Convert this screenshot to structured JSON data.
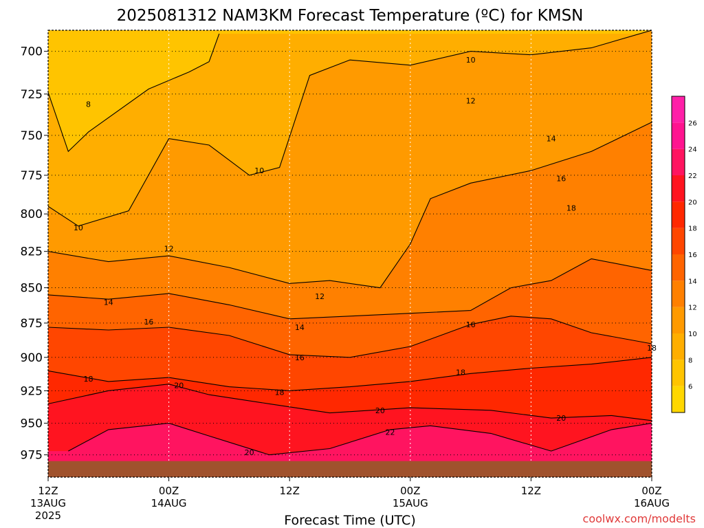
{
  "chart_data": {
    "type": "heatmap",
    "title": "2025081312 NAM3KM Forecast Temperature (ºC) for KMSN",
    "xlabel": "Forecast Time (UTC)",
    "ylabel": "",
    "credit": "coolwx.com/modelts",
    "x_ticks": [
      {
        "hours": 0,
        "line1": "12Z",
        "line2": "13AUG",
        "line3": "2025"
      },
      {
        "hours": 12,
        "line1": "00Z",
        "line2": "14AUG",
        "line3": ""
      },
      {
        "hours": 24,
        "line1": "12Z",
        "line2": "",
        "line3": ""
      },
      {
        "hours": 36,
        "line1": "00Z",
        "line2": "15AUG",
        "line3": ""
      },
      {
        "hours": 48,
        "line1": "12Z",
        "line2": "",
        "line3": ""
      },
      {
        "hours": 60,
        "line1": "00Z",
        "line2": "16AUG",
        "line3": ""
      }
    ],
    "x_range_hours": [
      0,
      60
    ],
    "y_ticks": [
      700,
      725,
      750,
      775,
      800,
      825,
      850,
      875,
      900,
      925,
      950,
      975
    ],
    "y_range_hpa": [
      688,
      993
    ],
    "y_scale": "pressure, inverted",
    "colorbar": {
      "labels": [
        "26",
        "24",
        "22",
        "20",
        "18",
        "16",
        "14",
        "12",
        "10",
        "8",
        "6"
      ],
      "bands": [
        {
          "from": 4,
          "to": 6,
          "color": "#ffd700"
        },
        {
          "from": 6,
          "to": 8,
          "color": "#ffc400"
        },
        {
          "from": 8,
          "to": 10,
          "color": "#ffae00"
        },
        {
          "from": 10,
          "to": 12,
          "color": "#ff9a00"
        },
        {
          "from": 12,
          "to": 14,
          "color": "#ff8000"
        },
        {
          "from": 14,
          "to": 16,
          "color": "#ff6400"
        },
        {
          "from": 16,
          "to": 18,
          "color": "#ff4600"
        },
        {
          "from": 18,
          "to": 20,
          "color": "#ff2800"
        },
        {
          "from": 20,
          "to": 22,
          "color": "#ff1420"
        },
        {
          "from": 22,
          "to": 24,
          "color": "#ff1460"
        },
        {
          "from": 24,
          "to": 26,
          "color": "#ff1490"
        },
        {
          "from": 26,
          "to": 28,
          "color": "#ff20a8"
        }
      ]
    },
    "contours": [
      {
        "value": 8,
        "points": [
          [
            0,
            724
          ],
          [
            2,
            760
          ],
          [
            4,
            748
          ],
          [
            10,
            722
          ],
          [
            14,
            712
          ],
          [
            16,
            706
          ],
          [
            17,
            690
          ]
        ],
        "labels": [
          {
            "hours": 4,
            "hpa": 731,
            "text": "8"
          }
        ]
      },
      {
        "value": 10,
        "points": [
          [
            0,
            795
          ],
          [
            3,
            808
          ],
          [
            8,
            798
          ],
          [
            12,
            752
          ],
          [
            16,
            756
          ],
          [
            20,
            775
          ],
          [
            23,
            770
          ],
          [
            26,
            714
          ],
          [
            30,
            705
          ],
          [
            36,
            708
          ],
          [
            42,
            700
          ],
          [
            48,
            702
          ],
          [
            54,
            698
          ],
          [
            60,
            688
          ]
        ],
        "labels": [
          {
            "hours": 3,
            "hpa": 809,
            "text": "10"
          },
          {
            "hours": 21,
            "hpa": 772,
            "text": "10"
          },
          {
            "hours": 42,
            "hpa": 705,
            "text": "10"
          }
        ]
      },
      {
        "value": 12,
        "points": [
          [
            0,
            825
          ],
          [
            6,
            832
          ],
          [
            12,
            828
          ],
          [
            18,
            836
          ],
          [
            24,
            847
          ],
          [
            28,
            845
          ],
          [
            33,
            850
          ],
          [
            36,
            820
          ],
          [
            38,
            790
          ],
          [
            42,
            780
          ],
          [
            48,
            772
          ],
          [
            54,
            760
          ],
          [
            60,
            742
          ]
        ],
        "labels": [
          {
            "hours": 12,
            "hpa": 823,
            "text": "12"
          },
          {
            "hours": 27,
            "hpa": 856,
            "text": "12"
          },
          {
            "hours": 42,
            "hpa": 729,
            "text": "12"
          }
        ]
      },
      {
        "value": 14,
        "points": [
          [
            0,
            855
          ],
          [
            6,
            858
          ],
          [
            12,
            854
          ],
          [
            18,
            862
          ],
          [
            24,
            872
          ],
          [
            30,
            870
          ],
          [
            36,
            868
          ],
          [
            42,
            866
          ],
          [
            46,
            850
          ],
          [
            50,
            845
          ],
          [
            54,
            830
          ],
          [
            60,
            838
          ]
        ],
        "labels": [
          {
            "hours": 6,
            "hpa": 860,
            "text": "14"
          },
          {
            "hours": 25,
            "hpa": 878,
            "text": "14"
          },
          {
            "hours": 50,
            "hpa": 752,
            "text": "14"
          }
        ]
      },
      {
        "value": 16,
        "points": [
          [
            0,
            878
          ],
          [
            6,
            880
          ],
          [
            12,
            878
          ],
          [
            18,
            884
          ],
          [
            24,
            898
          ],
          [
            30,
            900
          ],
          [
            36,
            892
          ],
          [
            42,
            876
          ],
          [
            46,
            870
          ],
          [
            50,
            872
          ],
          [
            54,
            882
          ],
          [
            60,
            890
          ]
        ],
        "labels": [
          {
            "hours": 10,
            "hpa": 874,
            "text": "16"
          },
          {
            "hours": 25,
            "hpa": 900,
            "text": "16"
          },
          {
            "hours": 42,
            "hpa": 876,
            "text": "16"
          },
          {
            "hours": 51,
            "hpa": 777,
            "text": "16"
          }
        ]
      },
      {
        "value": 18,
        "points": [
          [
            0,
            910
          ],
          [
            6,
            918
          ],
          [
            12,
            915
          ],
          [
            18,
            922
          ],
          [
            24,
            925
          ],
          [
            30,
            922
          ],
          [
            36,
            918
          ],
          [
            42,
            912
          ],
          [
            48,
            908
          ],
          [
            54,
            905
          ],
          [
            60,
            900
          ]
        ],
        "labels": [
          {
            "hours": 4,
            "hpa": 916,
            "text": "18"
          },
          {
            "hours": 23,
            "hpa": 926,
            "text": "18"
          },
          {
            "hours": 41,
            "hpa": 911,
            "text": "18"
          },
          {
            "hours": 52,
            "hpa": 796,
            "text": "18"
          },
          {
            "hours": 60,
            "hpa": 893,
            "text": "18"
          }
        ]
      },
      {
        "value": 20,
        "points": [
          [
            0,
            935
          ],
          [
            6,
            925
          ],
          [
            12,
            920
          ],
          [
            16,
            928
          ],
          [
            22,
            935
          ],
          [
            28,
            942
          ],
          [
            36,
            938
          ],
          [
            44,
            940
          ],
          [
            50,
            946
          ],
          [
            56,
            944
          ],
          [
            60,
            948
          ]
        ],
        "labels": [
          {
            "hours": 13,
            "hpa": 921,
            "text": "20"
          },
          {
            "hours": 33,
            "hpa": 940,
            "text": "20"
          },
          {
            "hours": 51,
            "hpa": 946,
            "text": "20"
          },
          {
            "hours": 20,
            "hpa": 973,
            "text": "20"
          }
        ]
      },
      {
        "value": 22,
        "points": [
          [
            2,
            972
          ],
          [
            6,
            955
          ],
          [
            12,
            950
          ],
          [
            16,
            960
          ],
          [
            22,
            975
          ],
          [
            28,
            970
          ],
          [
            34,
            955
          ],
          [
            38,
            952
          ],
          [
            44,
            958
          ],
          [
            50,
            972
          ],
          [
            56,
            955
          ],
          [
            60,
            950
          ]
        ],
        "labels": [
          {
            "hours": 34,
            "hpa": 957,
            "text": "22"
          }
        ]
      }
    ],
    "ground_level_hpa": 980
  }
}
